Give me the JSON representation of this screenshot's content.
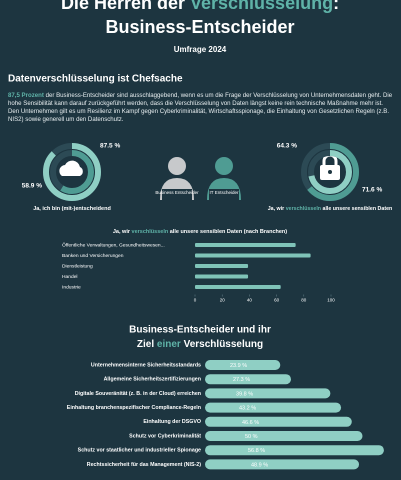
{
  "title": [
    "Die Herren der ",
    "Verschlüsselung",
    ":"
  ],
  "subtitle": "Business-Entscheider",
  "survey": "Umfrage 2024",
  "section1": {
    "heading": "Datenverschlüsselung ist Chefsache",
    "intro_highlight": "87,5 Prozent",
    "intro": " der Business-Entscheider sind ausschlaggebend, wenn es um die Frage der Verschlüsselung von Unternehmensdaten geht. Die hohe Sensibilität kann darauf zurückgeführt werden, dass die Verschlüsselung von Daten längst keine rein technische Maßnahme mehr ist. Den Unternehmen gilt es um Resilienz im Kampf gegen Cyberkriminalität, Wirtschaftsspionage, die Einhaltung von Gesetzlichen Regeln (z.B. NIS2) sowie generell um den Datenschutz."
  },
  "roles": [
    "Business Entscheider",
    "IT Entscheider"
  ],
  "chart_data": [
    {
      "type": "donut",
      "caption": [
        "Ja, ich bin (mit-)entscheidend"
      ],
      "values": [
        87.5,
        58.9
      ],
      "value_labels": [
        "87.5 %",
        "58.9 %"
      ],
      "colors": [
        "#8fcfc4",
        "#4f9c93"
      ]
    },
    {
      "type": "donut",
      "caption": [
        "Ja, wir ",
        "verschlüsseln",
        " alle unsere sensiblen Daten"
      ],
      "values": [
        64.3,
        71.6
      ],
      "value_labels": [
        "64.3 %",
        "71.6 %"
      ],
      "colors": [
        "#4f9c93",
        "#8fcfc4"
      ]
    },
    {
      "type": "hbar",
      "title": [
        "Ja, wir ",
        "verschlüsseln",
        " alle unsere sensiblen Daten (nach Branchen)"
      ],
      "categories": [
        "Öffentliche Verwaltungen, Gesundheitswesen...",
        "Banken und Versicherungen",
        "Dienstleistung",
        "Handel",
        "Industrie"
      ],
      "values": [
        74,
        85,
        39,
        39,
        63
      ],
      "color": "#7fc3b8",
      "xlim": [
        0,
        100
      ],
      "xticks": [
        0,
        20,
        40,
        60,
        80,
        100
      ]
    },
    {
      "type": "hbar-labeled",
      "title": [
        "Business-Entscheider und ihr"
      ],
      "title2": [
        "Ziel",
        " einer ",
        "Verschlüsselung"
      ],
      "categories": [
        "Unternehmensinterne Sicherheitsstandards",
        "Allgemeine Sicherheitszertifizierungen",
        "Digitale Souveränität (z. B. in der Cloud) erreichen",
        "Einhaltung branchenspezifischer Compliance-Regeln",
        "Einhaltung der DSGVO",
        "Schutz vor Cyberkriminalität",
        "Schutz vor staatlicher und industrieller Spionage",
        "Rechtssicherheit für das Management (NIS-2)"
      ],
      "values": [
        23.9,
        27.3,
        39.8,
        43.2,
        46.6,
        50,
        56.8,
        48.9
      ],
      "value_labels": [
        "23.9 %",
        "27.3 %",
        "39.8 %",
        "43.2 %",
        "46.6 %",
        "50 %",
        "56.8 %",
        "48.9 %"
      ],
      "color": "#8fcfc4"
    }
  ]
}
